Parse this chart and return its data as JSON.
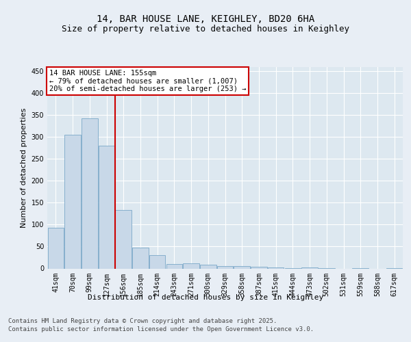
{
  "title_line1": "14, BAR HOUSE LANE, KEIGHLEY, BD20 6HA",
  "title_line2": "Size of property relative to detached houses in Keighley",
  "xlabel": "Distribution of detached houses by size in Keighley",
  "ylabel": "Number of detached properties",
  "footer_line1": "Contains HM Land Registry data © Crown copyright and database right 2025.",
  "footer_line2": "Contains public sector information licensed under the Open Government Licence v3.0.",
  "categories": [
    "41sqm",
    "70sqm",
    "99sqm",
    "127sqm",
    "156sqm",
    "185sqm",
    "214sqm",
    "243sqm",
    "271sqm",
    "300sqm",
    "329sqm",
    "358sqm",
    "387sqm",
    "415sqm",
    "444sqm",
    "473sqm",
    "502sqm",
    "531sqm",
    "559sqm",
    "588sqm",
    "617sqm"
  ],
  "values": [
    93,
    305,
    343,
    280,
    133,
    47,
    31,
    10,
    11,
    8,
    6,
    5,
    4,
    2,
    1,
    2,
    1,
    0,
    1,
    0,
    1
  ],
  "bar_color": "#c8d8e8",
  "bar_edge_color": "#7aa8c8",
  "highlight_bar_index": 3,
  "highlight_line_color": "#cc0000",
  "annotation_text_line1": "14 BAR HOUSE LANE: 155sqm",
  "annotation_text_line2": "← 79% of detached houses are smaller (1,007)",
  "annotation_text_line3": "20% of semi-detached houses are larger (253) →",
  "annotation_box_color": "#cc0000",
  "ylim": [
    0,
    460
  ],
  "yticks": [
    0,
    50,
    100,
    150,
    200,
    250,
    300,
    350,
    400,
    450
  ],
  "background_color": "#dde8f0",
  "grid_color": "#ffffff",
  "fig_bg_color": "#e8eef5",
  "title_fontsize": 10,
  "subtitle_fontsize": 9,
  "axis_label_fontsize": 8,
  "tick_fontsize": 7,
  "footer_fontsize": 6.5,
  "annotation_fontsize": 7.5
}
